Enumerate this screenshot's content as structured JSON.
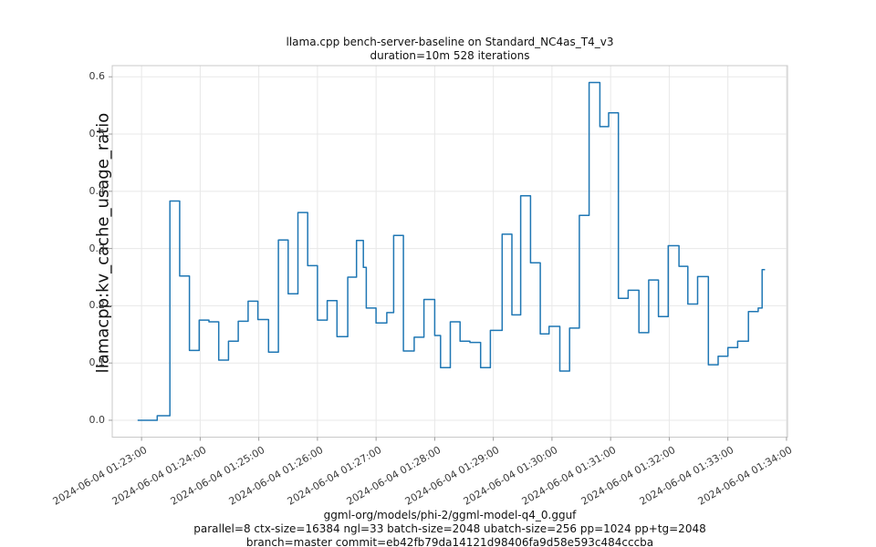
{
  "title": {
    "line1": "llama.cpp bench-server-baseline on Standard_NC4as_T4_v3",
    "line2": "duration=10m 528 iterations"
  },
  "captions": {
    "line1": "ggml-org/models/phi-2/ggml-model-q4_0.gguf",
    "line2": "parallel=8 ctx-size=16384 ngl=33 batch-size=2048 ubatch-size=256 pp=1024 pp+tg=2048",
    "line3": "branch=master commit=eb42fb79da14121d98406fa9d58e593c484cccba"
  },
  "axes": {
    "y_label": "llamacpp:kv_cache_usage_ratio"
  },
  "chart_data": {
    "type": "line",
    "line_style": "steps-post",
    "line_color": "#1f77b4",
    "grid": true,
    "grid_color": "#e8e8e8",
    "spine_color": "#c9c9c9",
    "tick_color": "#9a9a9a",
    "title": "llama.cpp bench-server-baseline on Standard_NC4as_T4_v3",
    "subtitle": "duration=10m 528 iterations",
    "ylabel": "llamacpp:kv_cache_usage_ratio",
    "xlabel": "",
    "t_reference": "seconds after 2024-06-04 01:23:00",
    "t_seconds": [
      -4,
      12,
      16,
      29,
      39,
      49,
      59,
      69,
      79,
      89,
      99,
      109,
      119,
      130,
      140,
      150,
      160,
      170,
      180,
      190,
      200,
      211,
      220,
      227,
      230,
      240,
      251,
      258,
      268,
      279,
      289,
      300,
      306,
      316,
      326,
      336,
      347,
      357,
      369,
      379,
      388,
      398,
      408,
      417,
      428,
      438,
      448,
      458,
      469,
      478,
      488,
      498,
      509,
      519,
      529,
      539,
      550,
      559,
      569,
      580,
      590,
      600,
      610,
      621,
      631,
      635,
      638
    ],
    "values": [
      0.0,
      0.0,
      0.008,
      0.383,
      0.252,
      0.122,
      0.175,
      0.172,
      0.105,
      0.138,
      0.173,
      0.208,
      0.176,
      0.119,
      0.315,
      0.221,
      0.363,
      0.27,
      0.175,
      0.209,
      0.146,
      0.25,
      0.314,
      0.267,
      0.196,
      0.17,
      0.188,
      0.323,
      0.121,
      0.145,
      0.211,
      0.148,
      0.092,
      0.172,
      0.138,
      0.136,
      0.092,
      0.157,
      0.325,
      0.184,
      0.392,
      0.275,
      0.151,
      0.164,
      0.086,
      0.161,
      0.358,
      0.59,
      0.513,
      0.537,
      0.213,
      0.227,
      0.153,
      0.245,
      0.181,
      0.305,
      0.269,
      0.203,
      0.251,
      0.097,
      0.112,
      0.127,
      0.138,
      0.19,
      0.196,
      0.263,
      0.263
    ],
    "x_tick_seconds": [
      0,
      60,
      120,
      180,
      240,
      300,
      360,
      420,
      480,
      540,
      600,
      660
    ],
    "x_tick_labels": [
      "2024-06-04 01:23:00",
      "2024-06-04 01:24:00",
      "2024-06-04 01:25:00",
      "2024-06-04 01:26:00",
      "2024-06-04 01:27:00",
      "2024-06-04 01:28:00",
      "2024-06-04 01:29:00",
      "2024-06-04 01:30:00",
      "2024-06-04 01:31:00",
      "2024-06-04 01:32:00",
      "2024-06-04 01:33:00",
      "2024-06-04 01:34:00"
    ],
    "y_ticks": [
      0.0,
      0.1,
      0.2,
      0.3,
      0.4,
      0.5,
      0.6
    ],
    "y_tick_labels": [
      "0.0",
      "0.1",
      "0.2",
      "0.3",
      "0.4",
      "0.5",
      "0.6"
    ],
    "xlim_seconds": [
      -30,
      661
    ],
    "ylim": [
      -0.0295,
      0.6195
    ]
  }
}
